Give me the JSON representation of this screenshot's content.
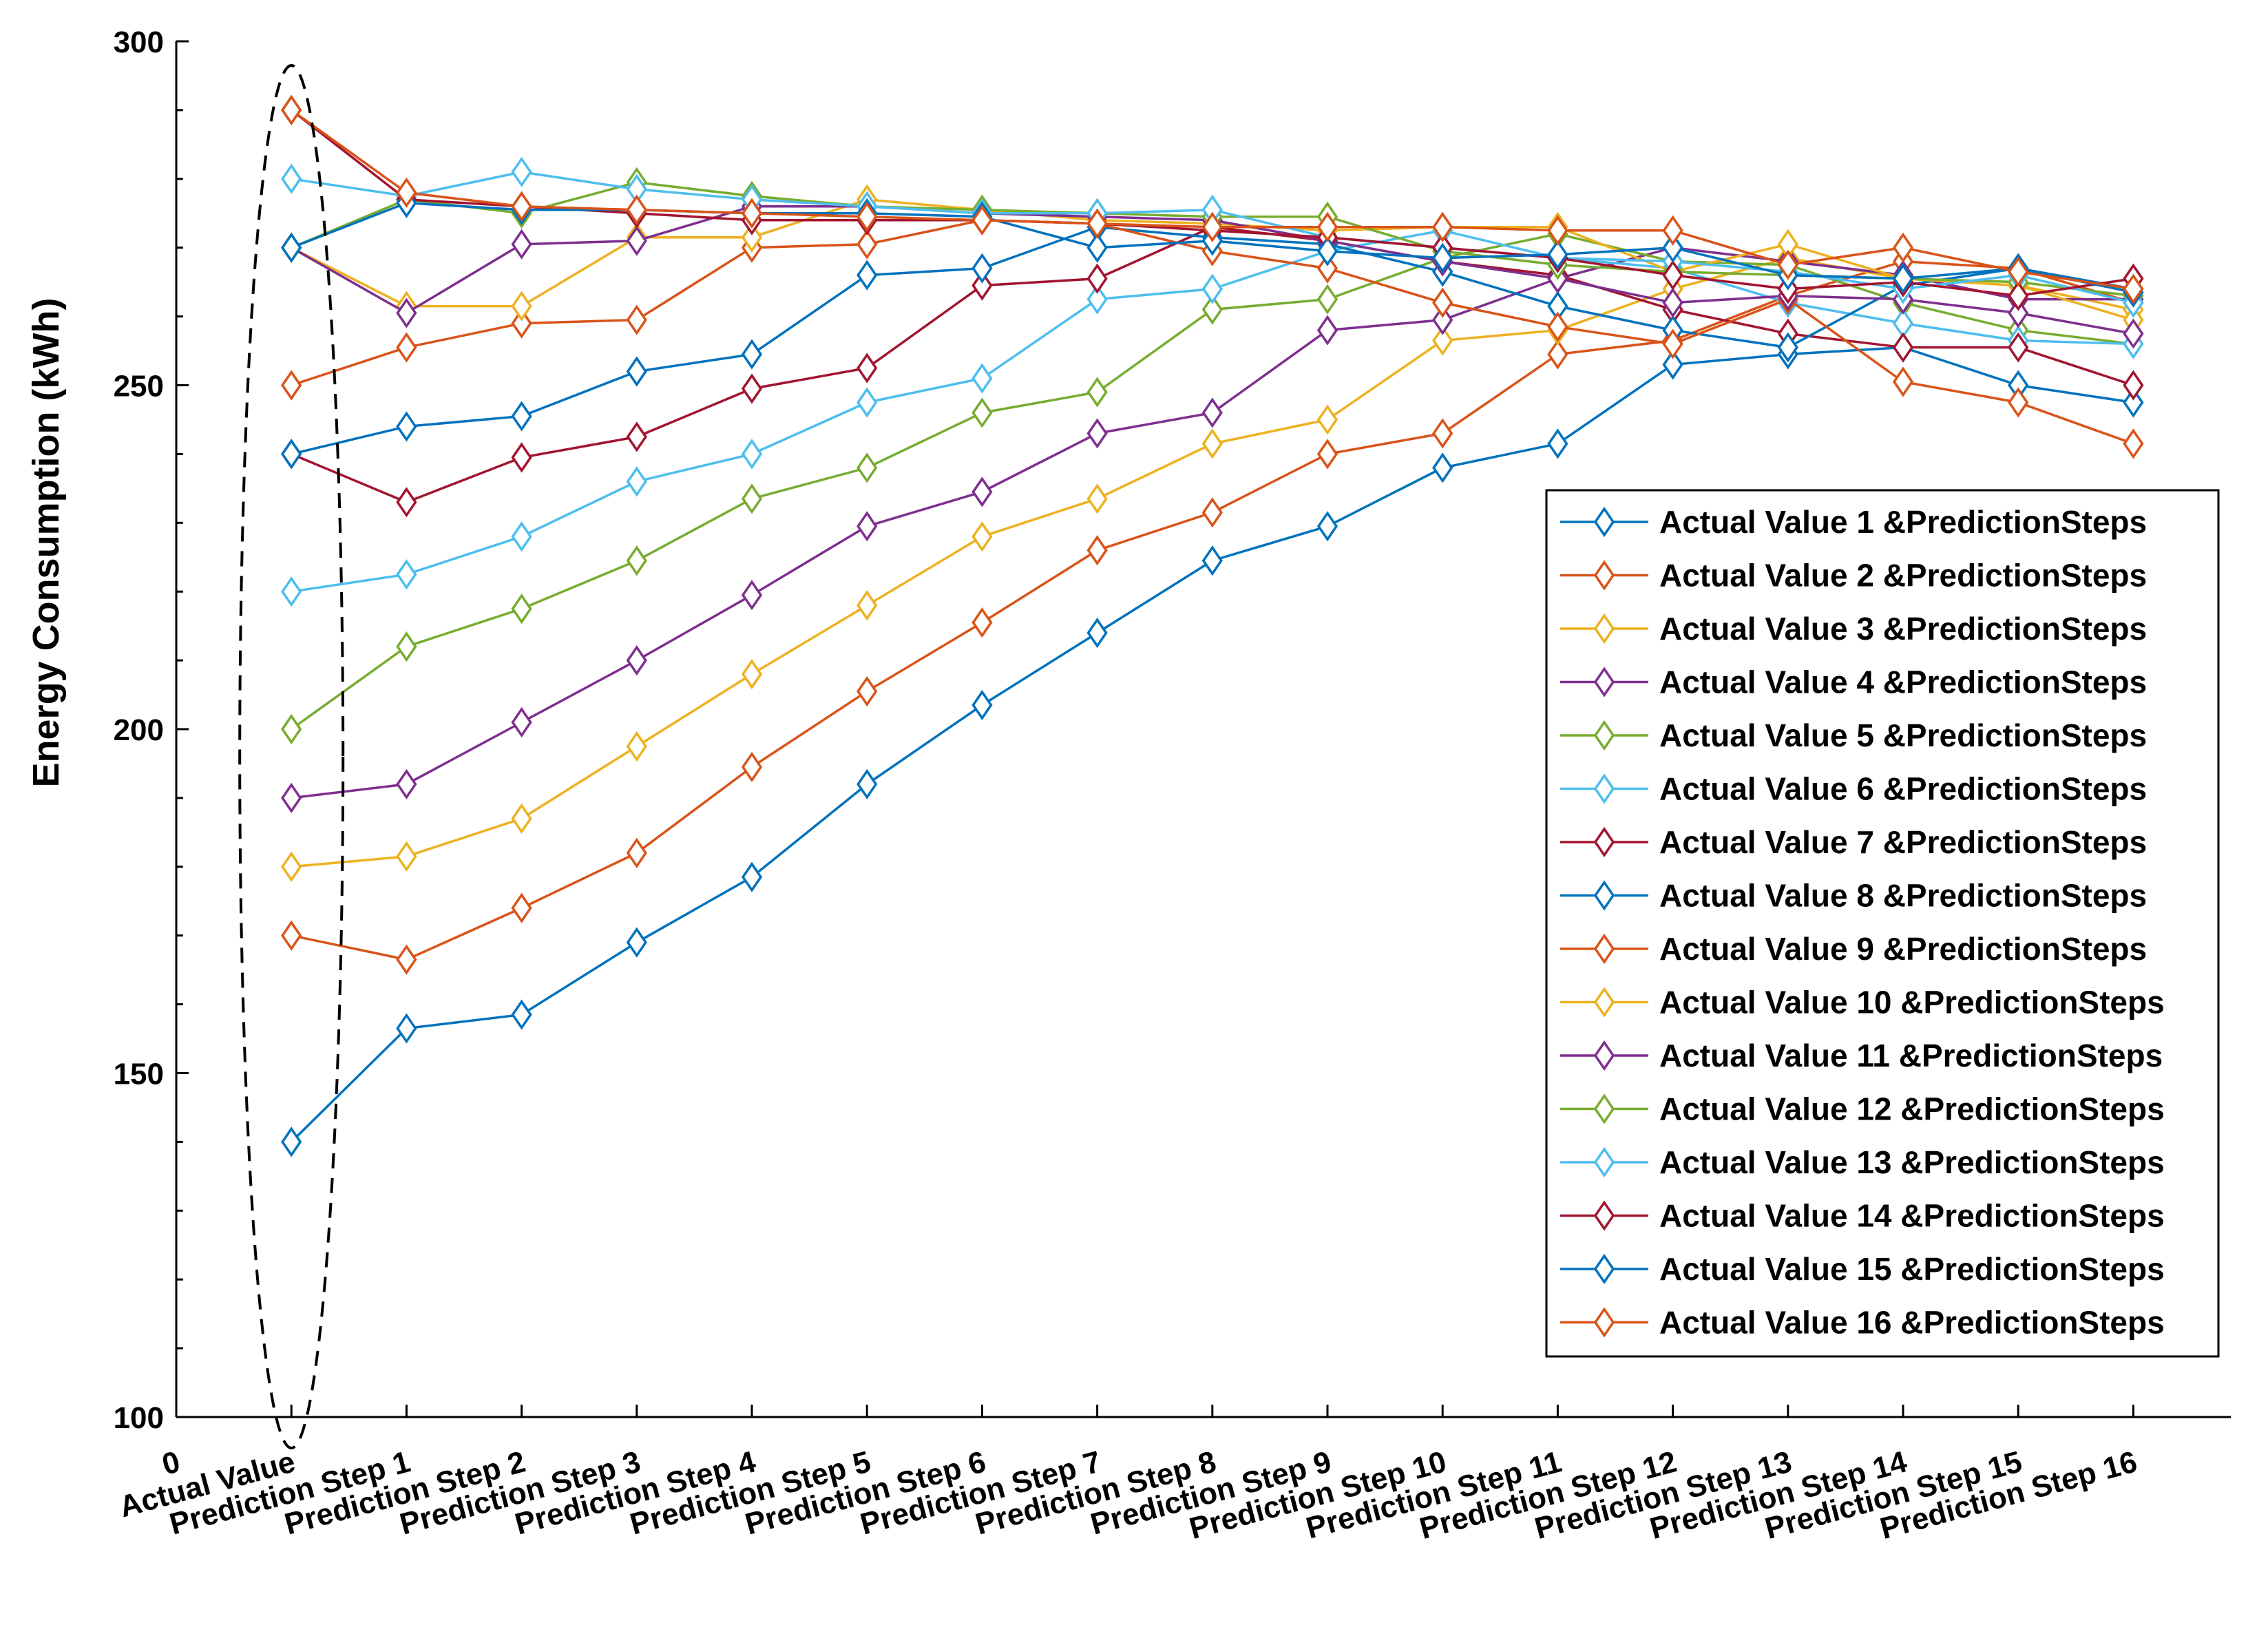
{
  "chart_data": {
    "type": "line",
    "title": "",
    "xlabel": "",
    "ylabel": "Energy Consumption (kWh)",
    "ylim": [
      100,
      300
    ],
    "yticks": [
      100,
      150,
      200,
      250,
      300
    ],
    "x_tick_labels": [
      "0",
      "Actual Value",
      "Prediction Step 1",
      "Prediction Step 2",
      "Prediction Step 3",
      "Prediction Step 4",
      "Prediction Step 5",
      "Prediction Step 6",
      "Prediction Step 7",
      "Prediction Step 8",
      "Prediction Step 9",
      "Prediction Step 10",
      "Prediction Step 11",
      "Prediction Step 12",
      "Prediction Step 13",
      "Prediction Step 14",
      "Prediction Step 15",
      "Prediction Step 16"
    ],
    "marker": "diamond",
    "legend_position": "right",
    "annotation": "dashed ellipse around Actual Value column",
    "series": [
      {
        "name": "Actual Value 1 &PredictionSteps",
        "color": "#0072BD",
        "values": [
          140,
          156.5,
          158.5,
          169,
          178.5,
          192,
          203.5,
          214,
          224.5,
          229.5,
          238,
          241.5,
          253,
          254.5,
          255.5,
          250,
          247.5
        ]
      },
      {
        "name": "Actual Value 2 &PredictionSteps",
        "color": "#D95319",
        "values": [
          170,
          166.5,
          174,
          182,
          194.5,
          205.5,
          215.5,
          226,
          231.5,
          240,
          243,
          254.5,
          256.5,
          263,
          268,
          267,
          262
        ]
      },
      {
        "name": "Actual Value 3 &PredictionSteps",
        "color": "#EDB120",
        "values": [
          180,
          181.5,
          187,
          197.5,
          208,
          218,
          228,
          233.5,
          241.5,
          245,
          256.5,
          258,
          264,
          268.5,
          265.5,
          264.5,
          261
        ]
      },
      {
        "name": "Actual Value 4 &PredictionSteps",
        "color": "#7E2F8E",
        "values": [
          190,
          192,
          201,
          210,
          219.5,
          229.5,
          234.5,
          243,
          246,
          258,
          259.5,
          265.5,
          270,
          268,
          266,
          262.5,
          262.5
        ]
      },
      {
        "name": "Actual Value 5 &PredictionSteps",
        "color": "#77AC30",
        "values": [
          200,
          212,
          217.5,
          224.5,
          233.5,
          238,
          246,
          249,
          261,
          262.5,
          268.5,
          272,
          268,
          267.5,
          262,
          258,
          256
        ]
      },
      {
        "name": "Actual Value 6 &PredictionSteps",
        "color": "#4DBEEE",
        "values": [
          220,
          222.5,
          228,
          236,
          240,
          247.5,
          251,
          262.5,
          264,
          269.5,
          272.5,
          268.5,
          267,
          262,
          259,
          256.5,
          256
        ]
      },
      {
        "name": "Actual Value 7 &PredictionSteps",
        "color": "#A2142F",
        "values": [
          240,
          233,
          239.5,
          242.5,
          249.5,
          252.5,
          264.5,
          265.5,
          273,
          271,
          268,
          266,
          261,
          257.5,
          255.5,
          255.5,
          250
        ]
      },
      {
        "name": "Actual Value 8 &PredictionSteps",
        "color": "#0072BD",
        "values": [
          240,
          244,
          245.5,
          252,
          254.5,
          266,
          267,
          273,
          271.5,
          270.5,
          266.5,
          261.5,
          258,
          255.5,
          264.5,
          267,
          264
        ]
      },
      {
        "name": "Actual Value 9 &PredictionSteps",
        "color": "#D95319",
        "values": [
          250,
          255.5,
          259,
          259.5,
          270,
          270.5,
          274,
          273.5,
          269.5,
          267,
          262,
          258.5,
          256,
          262.5,
          250.5,
          247.5,
          241.5
        ]
      },
      {
        "name": "Actual Value 10 &PredictionSteps",
        "color": "#EDB120",
        "values": [
          270,
          261.5,
          261.5,
          271.5,
          271.5,
          277,
          275.5,
          274,
          273.5,
          272.5,
          273,
          273,
          266.5,
          270.5,
          265.5,
          264.5,
          259.5
        ]
      },
      {
        "name": "Actual Value 11 &PredictionSteps",
        "color": "#7E2F8E",
        "values": [
          270,
          260.5,
          270.5,
          271,
          276,
          276,
          275,
          274.5,
          274,
          271,
          268,
          265.5,
          262,
          263,
          262.5,
          260.5,
          257.5
        ]
      },
      {
        "name": "Actual Value 12 &PredictionSteps",
        "color": "#77AC30",
        "values": [
          270,
          277,
          275,
          279.5,
          277.5,
          276,
          275.5,
          275,
          274.5,
          274.5,
          269.5,
          267.5,
          266.5,
          266,
          265.5,
          265,
          263
        ]
      },
      {
        "name": "Actual Value 13 &PredictionSteps",
        "color": "#4DBEEE",
        "values": [
          280,
          277.5,
          281,
          278.5,
          277,
          276,
          275,
          275,
          275.5,
          271.5,
          270,
          268.5,
          268,
          266.5,
          264,
          266,
          262
        ]
      },
      {
        "name": "Actual Value 14 &PredictionSteps",
        "color": "#A2142F",
        "values": [
          290,
          277,
          276,
          275,
          274,
          274,
          274,
          273.5,
          272.5,
          271.5,
          270,
          268.5,
          266,
          264,
          265,
          263,
          265.5
        ]
      },
      {
        "name": "Actual Value 15 &PredictionSteps",
        "color": "#0072BD",
        "values": [
          270,
          276.5,
          275.5,
          275.5,
          275,
          275,
          274.5,
          270,
          271,
          269.5,
          268.5,
          269,
          270,
          266,
          265.5,
          267,
          263.5
        ]
      },
      {
        "name": "Actual Value 16 &PredictionSteps",
        "color": "#D95319",
        "values": [
          290,
          278,
          276,
          275.5,
          275,
          274.5,
          274,
          273.5,
          273,
          273,
          273,
          272.5,
          272.5,
          267.5,
          270,
          266.5,
          264
        ]
      }
    ]
  }
}
